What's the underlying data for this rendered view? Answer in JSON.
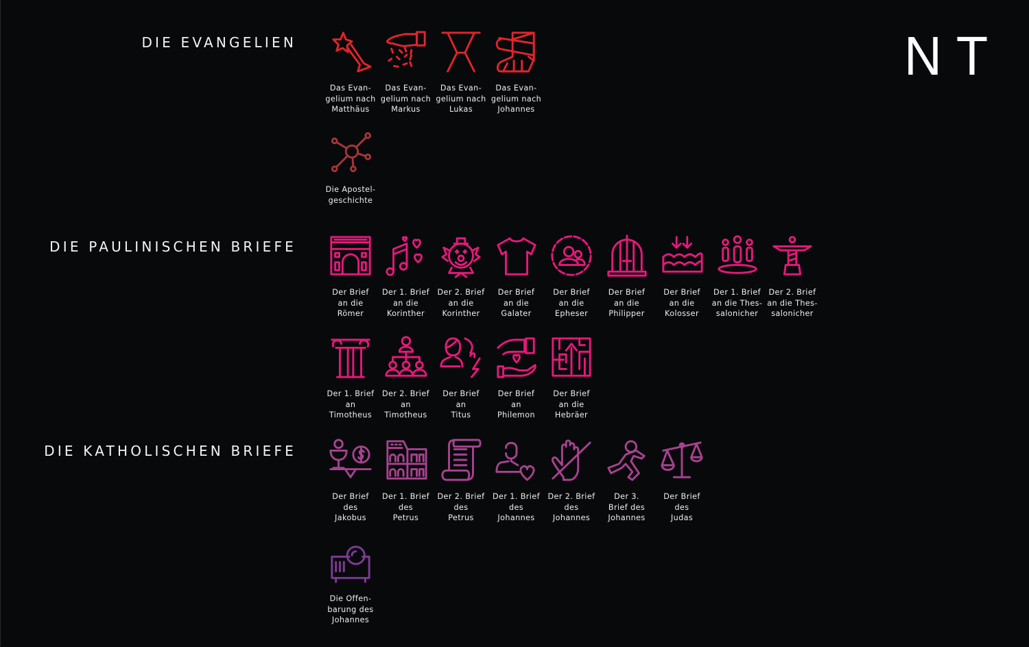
{
  "corner_label": "NT",
  "sections": [
    {
      "title": "DIE EVANGELIEN",
      "books": [
        {
          "lines": [
            "Das Evan-",
            "gelium nach",
            "Matthäus"
          ],
          "icon": "star-wand-icon",
          "color": "#e3242b"
        },
        {
          "lines": [
            "Das Evan-",
            "gelium nach",
            "Markus"
          ],
          "icon": "sprinkling-hand-icon",
          "color": "#e3242b"
        },
        {
          "lines": [
            "Das Evan-",
            "gelium nach",
            "Lukas"
          ],
          "icon": "hourglass-stand-icon",
          "color": "#e3242b"
        },
        {
          "lines": [
            "Das Evan-",
            "gelium nach",
            "Johannes"
          ],
          "icon": "bandaged-leg-icon",
          "color": "#e3242b"
        },
        {
          "lines": [
            "Die Apostel-",
            "geschichte"
          ],
          "icon": "network-hub-icon",
          "color": "#a83538",
          "newrow": true
        }
      ]
    },
    {
      "title": "DIE PAULINISCHEN BRIEFE",
      "books": [
        {
          "lines": [
            "Der Brief",
            "an die",
            "Römer"
          ],
          "icon": "triumphal-arch-icon",
          "color": "#e5197a"
        },
        {
          "lines": [
            "Der 1. Brief",
            "an die",
            "Korinther"
          ],
          "icon": "music-hearts-icon",
          "color": "#e5197a"
        },
        {
          "lines": [
            "Der 2. Brief",
            "an die",
            "Korinther"
          ],
          "icon": "clown-icon",
          "color": "#e5197a"
        },
        {
          "lines": [
            "Der Brief",
            "an die",
            "Galater"
          ],
          "icon": "t-shirt-icon",
          "color": "#e5197a"
        },
        {
          "lines": [
            "Der Brief",
            "an die",
            "Epheser"
          ],
          "icon": "group-circle-icon",
          "color": "#e5197a"
        },
        {
          "lines": [
            "Der Brief",
            "an die",
            "Philipper"
          ],
          "icon": "birdcage-icon",
          "color": "#e5197a"
        },
        {
          "lines": [
            "Der Brief",
            "an die",
            "Kolosser"
          ],
          "icon": "sinking-water-icon",
          "color": "#e5197a"
        },
        {
          "lines": [
            "Der 1. Brief",
            "an die Thes-",
            "salonicher"
          ],
          "icon": "people-platform-icon",
          "color": "#e5197a"
        },
        {
          "lines": [
            "Der 2. Brief",
            "an die Thes-",
            "salonicher"
          ],
          "icon": "christ-statue-icon",
          "color": "#e5197a"
        },
        {
          "lines": [
            "Der 1. Brief",
            "an",
            "Timotheus"
          ],
          "icon": "ionic-column-icon",
          "color": "#e5197a",
          "newrow": true
        },
        {
          "lines": [
            "Der 2. Brief",
            "an",
            "Timotheus"
          ],
          "icon": "hierarchy-people-icon",
          "color": "#e5197a"
        },
        {
          "lines": [
            "Der Brief",
            "an",
            "Titus"
          ],
          "icon": "person-lightning-icon",
          "color": "#e5197a"
        },
        {
          "lines": [
            "Der Brief",
            "an",
            "Philemon"
          ],
          "icon": "hands-heart-icon",
          "color": "#e5197a"
        },
        {
          "lines": [
            "Der Brief",
            "an die",
            "Hebräer"
          ],
          "icon": "maze-arrow-icon",
          "color": "#e5197a"
        }
      ]
    },
    {
      "title": "DIE KATHOLISCHEN BRIEFE",
      "books": [
        {
          "lines": [
            "Der Brief",
            "des",
            "Jakobus"
          ],
          "icon": "chalice-balance-icon",
          "color": "#a8428f"
        },
        {
          "lines": [
            "Der 1. Brief",
            "des",
            "Petrus"
          ],
          "icon": "colosseum-icon",
          "color": "#a8428f"
        },
        {
          "lines": [
            "Der 2. Brief",
            "des",
            "Petrus"
          ],
          "icon": "scroll-icon",
          "color": "#a8428f"
        },
        {
          "lines": [
            "Der 1. Brief",
            "des",
            "Johannes"
          ],
          "icon": "person-heart-icon",
          "color": "#a8428f"
        },
        {
          "lines": [
            "Der 2. Brief",
            "des",
            "Johannes"
          ],
          "icon": "hand-crossed-icon",
          "color": "#a8428f"
        },
        {
          "lines": [
            "Der 3.",
            "Brief des",
            "Johannes"
          ],
          "icon": "running-person-icon",
          "color": "#a8428f"
        },
        {
          "lines": [
            "Der Brief",
            "des",
            "Judas"
          ],
          "icon": "scales-icon",
          "color": "#a8428f"
        },
        {
          "lines": [
            "Die Offen-",
            "barung des",
            "Johannes"
          ],
          "icon": "projector-icon",
          "color": "#7e3a96",
          "newrow": true
        }
      ]
    }
  ]
}
